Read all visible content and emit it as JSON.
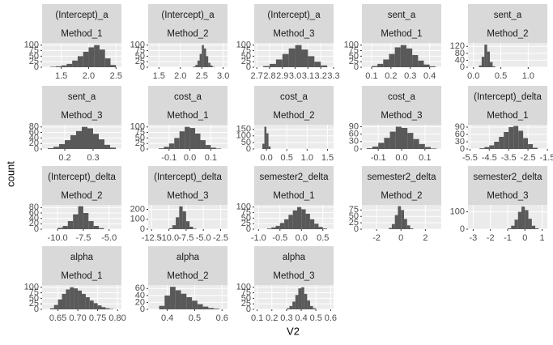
{
  "x_label": "V2",
  "y_label": "count",
  "chart_data": [
    {
      "type": "histogram",
      "title": "(Intercept)_a",
      "subtitle": "Method_1",
      "color": "#595959",
      "grid": true,
      "bins": [
        1.3,
        1.4,
        1.5,
        1.6,
        1.7,
        1.8,
        1.9,
        2.0,
        2.1,
        2.2,
        2.3,
        2.4,
        2.5
      ],
      "values": [
        2,
        4,
        8,
        15,
        30,
        50,
        70,
        90,
        100,
        80,
        40,
        10
      ],
      "xlim": [
        1.15,
        2.6
      ],
      "xticks": [
        1.5,
        {
          "value": 2,
          "label": "2.0"
        },
        2.5
      ],
      "ylim": [
        0,
        110
      ],
      "yticks": [
        0,
        25,
        50,
        75,
        100
      ]
    },
    {
      "type": "histogram",
      "title": "(Intercept)_a",
      "subtitle": "Method_2",
      "color": "#595959",
      "grid": true,
      "bins": [
        2.3,
        2.35,
        2.4,
        2.45,
        2.5,
        2.55,
        2.6,
        2.65,
        2.7,
        2.75,
        2.8
      ],
      "values": [
        3,
        10,
        30,
        60,
        100,
        85,
        50,
        20,
        8,
        2
      ],
      "xlim": [
        1.25,
        3.1
      ],
      "xticks": [
        1.5,
        {
          "value": 2,
          "label": "2.0"
        },
        2.5,
        {
          "value": 3,
          "label": "3.0"
        }
      ],
      "ylim": [
        0,
        110
      ],
      "yticks": [
        0,
        25,
        50,
        75,
        100
      ]
    },
    {
      "type": "histogram",
      "title": "(Intercept)_a",
      "subtitle": "Method_3",
      "color": "#595959",
      "grid": true,
      "bins": [
        2.75,
        2.8,
        2.85,
        2.9,
        2.95,
        3.0,
        3.05,
        3.1,
        3.15,
        3.2,
        3.25
      ],
      "values": [
        5,
        15,
        35,
        60,
        85,
        100,
        80,
        50,
        25,
        8
      ],
      "xlim": [
        2.68,
        3.3
      ],
      "xticks": [
        2.7,
        2.8,
        2.9,
        {
          "value": 3,
          "label": "3.0"
        },
        3.1,
        3.2,
        3.3
      ],
      "ylim": [
        0,
        110
      ],
      "yticks": [
        0,
        25,
        50,
        75,
        100
      ]
    },
    {
      "type": "histogram",
      "title": "sent_a",
      "subtitle": "Method_1",
      "color": "#595959",
      "grid": true,
      "bins": [
        0.1,
        0.13,
        0.16,
        0.19,
        0.22,
        0.25,
        0.28,
        0.31,
        0.34,
        0.37,
        0.4,
        0.43
      ],
      "values": [
        5,
        15,
        35,
        60,
        90,
        100,
        85,
        55,
        30,
        12,
        4
      ],
      "xlim": [
        0.05,
        0.46
      ],
      "xticks": [
        0.1,
        0.2,
        0.3,
        0.4
      ],
      "ylim": [
        0,
        110
      ],
      "yticks": [
        0,
        25,
        50,
        75,
        100
      ]
    },
    {
      "type": "histogram",
      "title": "sent_a",
      "subtitle": "Method_2",
      "color": "#595959",
      "grid": true,
      "bins": [
        0.1,
        0.15,
        0.2,
        0.25,
        0.3,
        0.35,
        0.4
      ],
      "values": [
        10,
        60,
        130,
        90,
        30,
        5
      ],
      "xlim": [
        -0.1,
        1.35
      ],
      "xticks": [
        {
          "value": 0,
          "label": "0.0"
        },
        0.5,
        {
          "value": 1,
          "label": "1.0"
        }
      ],
      "ylim": [
        0,
        140
      ],
      "yticks": [
        0,
        40,
        80,
        120
      ]
    },
    {
      "type": "histogram",
      "title": "sent_a",
      "subtitle": "Method_3",
      "color": "#595959",
      "grid": true,
      "bins": [
        0.14,
        0.16,
        0.18,
        0.2,
        0.22,
        0.24,
        0.26,
        0.28,
        0.3,
        0.32,
        0.34,
        0.36,
        0.38
      ],
      "values": [
        3,
        8,
        18,
        32,
        50,
        65,
        80,
        75,
        55,
        35,
        15,
        5
      ],
      "xlim": [
        0.12,
        0.4
      ],
      "xticks": [
        0.2,
        0.3
      ],
      "ylim": [
        0,
        88
      ],
      "yticks": [
        0,
        20,
        40,
        60,
        80
      ]
    },
    {
      "type": "histogram",
      "title": "cost_a",
      "subtitle": "Method_1",
      "color": "#595959",
      "grid": true,
      "bins": [
        -0.15,
        -0.125,
        -0.1,
        -0.075,
        -0.05,
        -0.025,
        0,
        0.025,
        0.05,
        0.075,
        0.1,
        0.125,
        0.15
      ],
      "values": [
        3,
        10,
        25,
        50,
        80,
        100,
        95,
        70,
        40,
        18,
        6,
        2
      ],
      "xlim": [
        -0.2,
        0.18
      ],
      "xticks": [
        -0.1,
        {
          "value": 0,
          "label": "0.0"
        },
        0.1
      ],
      "ylim": [
        0,
        110
      ],
      "yticks": [
        0,
        25,
        50,
        75,
        100
      ]
    },
    {
      "type": "histogram",
      "title": "cost_a",
      "subtitle": "Method_2",
      "color": "#595959",
      "grid": true,
      "bins": [
        -0.1,
        -0.05,
        0,
        0.05,
        0.1
      ],
      "values": [
        40,
        170,
        120,
        20
      ],
      "xlim": [
        -0.3,
        1.65
      ],
      "xticks": [
        {
          "value": 0,
          "label": "0.0"
        },
        0.5,
        {
          "value": 1,
          "label": "1.0"
        },
        1.5
      ],
      "ylim": [
        0,
        185
      ],
      "yticks": [
        0,
        50,
        100,
        150
      ]
    },
    {
      "type": "histogram",
      "title": "cost_a",
      "subtitle": "Method_3",
      "color": "#595959",
      "grid": true,
      "bins": [
        -0.15,
        -0.125,
        -0.1,
        -0.075,
        -0.05,
        -0.025,
        0,
        0.025,
        0.05,
        0.075,
        0.1,
        0.125,
        0.15
      ],
      "values": [
        3,
        10,
        25,
        45,
        70,
        90,
        85,
        65,
        40,
        20,
        8,
        2
      ],
      "xlim": [
        -0.17,
        0.17
      ],
      "xticks": [
        -0.1,
        {
          "value": 0,
          "label": "0.0"
        },
        0.1
      ],
      "ylim": [
        0,
        98
      ],
      "yticks": [
        0,
        30,
        60,
        90
      ]
    },
    {
      "type": "histogram",
      "title": "(Intercept)_delta",
      "subtitle": "Method_1",
      "color": "#595959",
      "grid": true,
      "bins": [
        -5,
        -4.75,
        -4.5,
        -4.25,
        -4,
        -3.75,
        -3.5,
        -3.25,
        -3,
        -2.75,
        -2.5,
        -2.25,
        -2
      ],
      "values": [
        3,
        8,
        15,
        30,
        50,
        70,
        90,
        95,
        75,
        45,
        20,
        5
      ],
      "xlim": [
        -5.6,
        -1.5
      ],
      "xticks": [
        -5.5,
        -4.5,
        -3.5,
        -2.5,
        -1.5
      ],
      "ylim": [
        0,
        100
      ],
      "yticks": [
        0,
        30,
        60,
        90
      ]
    },
    {
      "type": "histogram",
      "title": "(Intercept)_delta",
      "subtitle": "Method_2",
      "color": "#595959",
      "grid": true,
      "bins": [
        -10,
        -9.5,
        -9,
        -8.5,
        -8,
        -7.5,
        -7,
        -6.5,
        -6,
        -5.5
      ],
      "values": [
        5,
        12,
        30,
        55,
        85,
        60,
        30,
        12,
        4
      ],
      "xlim": [
        -11.5,
        -3.8
      ],
      "xticks": [
        {
          "value": -10,
          "label": "-10.0"
        },
        -7.5,
        {
          "value": -5,
          "label": "-5.0"
        }
      ],
      "ylim": [
        0,
        90
      ],
      "yticks": [
        0,
        20,
        40,
        60,
        80
      ]
    },
    {
      "type": "histogram",
      "title": "(Intercept)_delta",
      "subtitle": "Method_3",
      "color": "#595959",
      "grid": true,
      "bins": [
        -10,
        -9.5,
        -9,
        -8.5,
        -8,
        -7.5,
        -7,
        -6.5,
        -6
      ],
      "values": [
        10,
        40,
        120,
        230,
        180,
        80,
        25,
        5
      ],
      "xlim": [
        -13,
        -1.5
      ],
      "xticks": [
        -12.5,
        {
          "value": -10,
          "label": "-10.0"
        },
        -7.5,
        {
          "value": -5,
          "label": "-5.0"
        },
        -2.5
      ],
      "ylim": [
        0,
        245
      ],
      "yticks": [
        0,
        100,
        200
      ]
    },
    {
      "type": "histogram",
      "title": "semester2_delta",
      "subtitle": "Method_1",
      "color": "#595959",
      "grid": true,
      "bins": [
        -0.8,
        -0.7,
        -0.6,
        -0.5,
        -0.4,
        -0.3,
        -0.2,
        -0.1,
        0,
        0.1,
        0.2,
        0.3,
        0.4,
        0.5,
        0.6
      ],
      "values": [
        3,
        8,
        15,
        28,
        45,
        65,
        85,
        100,
        90,
        70,
        45,
        25,
        10,
        3
      ],
      "xlim": [
        -1.1,
        0.75
      ],
      "xticks": [
        {
          "value": -1,
          "label": "-1.0"
        },
        -0.5,
        {
          "value": 0,
          "label": "0.0"
        },
        0.5
      ],
      "ylim": [
        0,
        110
      ],
      "yticks": [
        0,
        25,
        50,
        75,
        100
      ]
    },
    {
      "type": "histogram",
      "title": "semester2_delta",
      "subtitle": "Method_2",
      "color": "#595959",
      "grid": true,
      "bins": [
        -1,
        -0.75,
        -0.5,
        -0.25,
        0,
        0.25,
        0.5,
        0.75,
        1
      ],
      "values": [
        5,
        20,
        55,
        90,
        75,
        40,
        15,
        3
      ],
      "xlim": [
        -3.2,
        3.3
      ],
      "xticks": [
        -2,
        0,
        2
      ],
      "ylim": [
        0,
        95
      ],
      "yticks": [
        0,
        25,
        50,
        75
      ]
    },
    {
      "type": "histogram",
      "title": "semester2_delta",
      "subtitle": "Method_3",
      "color": "#595959",
      "grid": true,
      "bins": [
        -1,
        -0.8,
        -0.6,
        -0.4,
        -0.2,
        0,
        0.2,
        0.4,
        0.6,
        0.8
      ],
      "values": [
        5,
        20,
        55,
        100,
        130,
        110,
        60,
        20,
        5
      ],
      "xlim": [
        -3.3,
        1.3
      ],
      "xticks": [
        -3,
        -2,
        -1,
        0,
        1
      ],
      "ylim": [
        0,
        140
      ],
      "yticks": [
        0,
        100
      ]
    },
    {
      "type": "histogram",
      "title": "alpha",
      "subtitle": "Method_1",
      "color": "#595959",
      "grid": true,
      "bins": [
        0.63,
        0.64,
        0.65,
        0.66,
        0.67,
        0.68,
        0.69,
        0.7,
        0.71,
        0.72,
        0.73,
        0.74,
        0.75,
        0.76,
        0.77,
        0.78,
        0.79
      ],
      "values": [
        5,
        20,
        45,
        70,
        90,
        100,
        95,
        85,
        70,
        55,
        40,
        28,
        18,
        10,
        5,
        2
      ],
      "xlim": [
        0.61,
        0.81
      ],
      "xticks": [
        0.65,
        {
          "value": 0.7,
          "label": "0.70"
        },
        0.75,
        {
          "value": 0.8,
          "label": "0.80"
        }
      ],
      "ylim": [
        0,
        110
      ],
      "yticks": [
        0,
        25,
        50,
        75,
        100
      ]
    },
    {
      "type": "histogram",
      "title": "alpha",
      "subtitle": "Method_2",
      "color": "#595959",
      "grid": true,
      "bins": [
        0.37,
        0.39,
        0.41,
        0.43,
        0.45,
        0.47,
        0.49,
        0.51,
        0.53,
        0.55,
        0.57,
        0.59
      ],
      "values": [
        10,
        40,
        65,
        55,
        45,
        35,
        25,
        15,
        8,
        4,
        2
      ],
      "xlim": [
        0.33,
        0.62
      ],
      "xticks": [
        0.4,
        0.5,
        0.6
      ],
      "ylim": [
        0,
        70
      ],
      "yticks": [
        0,
        20,
        40,
        60
      ]
    },
    {
      "type": "histogram",
      "title": "alpha",
      "subtitle": "Method_3",
      "color": "#595959",
      "grid": true,
      "bins": [
        0.3,
        0.32,
        0.34,
        0.36,
        0.38,
        0.4,
        0.42,
        0.44,
        0.46,
        0.48,
        0.5
      ],
      "values": [
        5,
        15,
        35,
        65,
        95,
        100,
        70,
        40,
        15,
        5
      ],
      "xlim": [
        0.08,
        0.62
      ],
      "xticks": [
        0.1,
        0.2,
        0.3,
        0.4,
        0.5,
        0.6
      ],
      "ylim": [
        0,
        110
      ],
      "yticks": [
        0,
        25,
        50,
        75,
        100
      ]
    }
  ]
}
